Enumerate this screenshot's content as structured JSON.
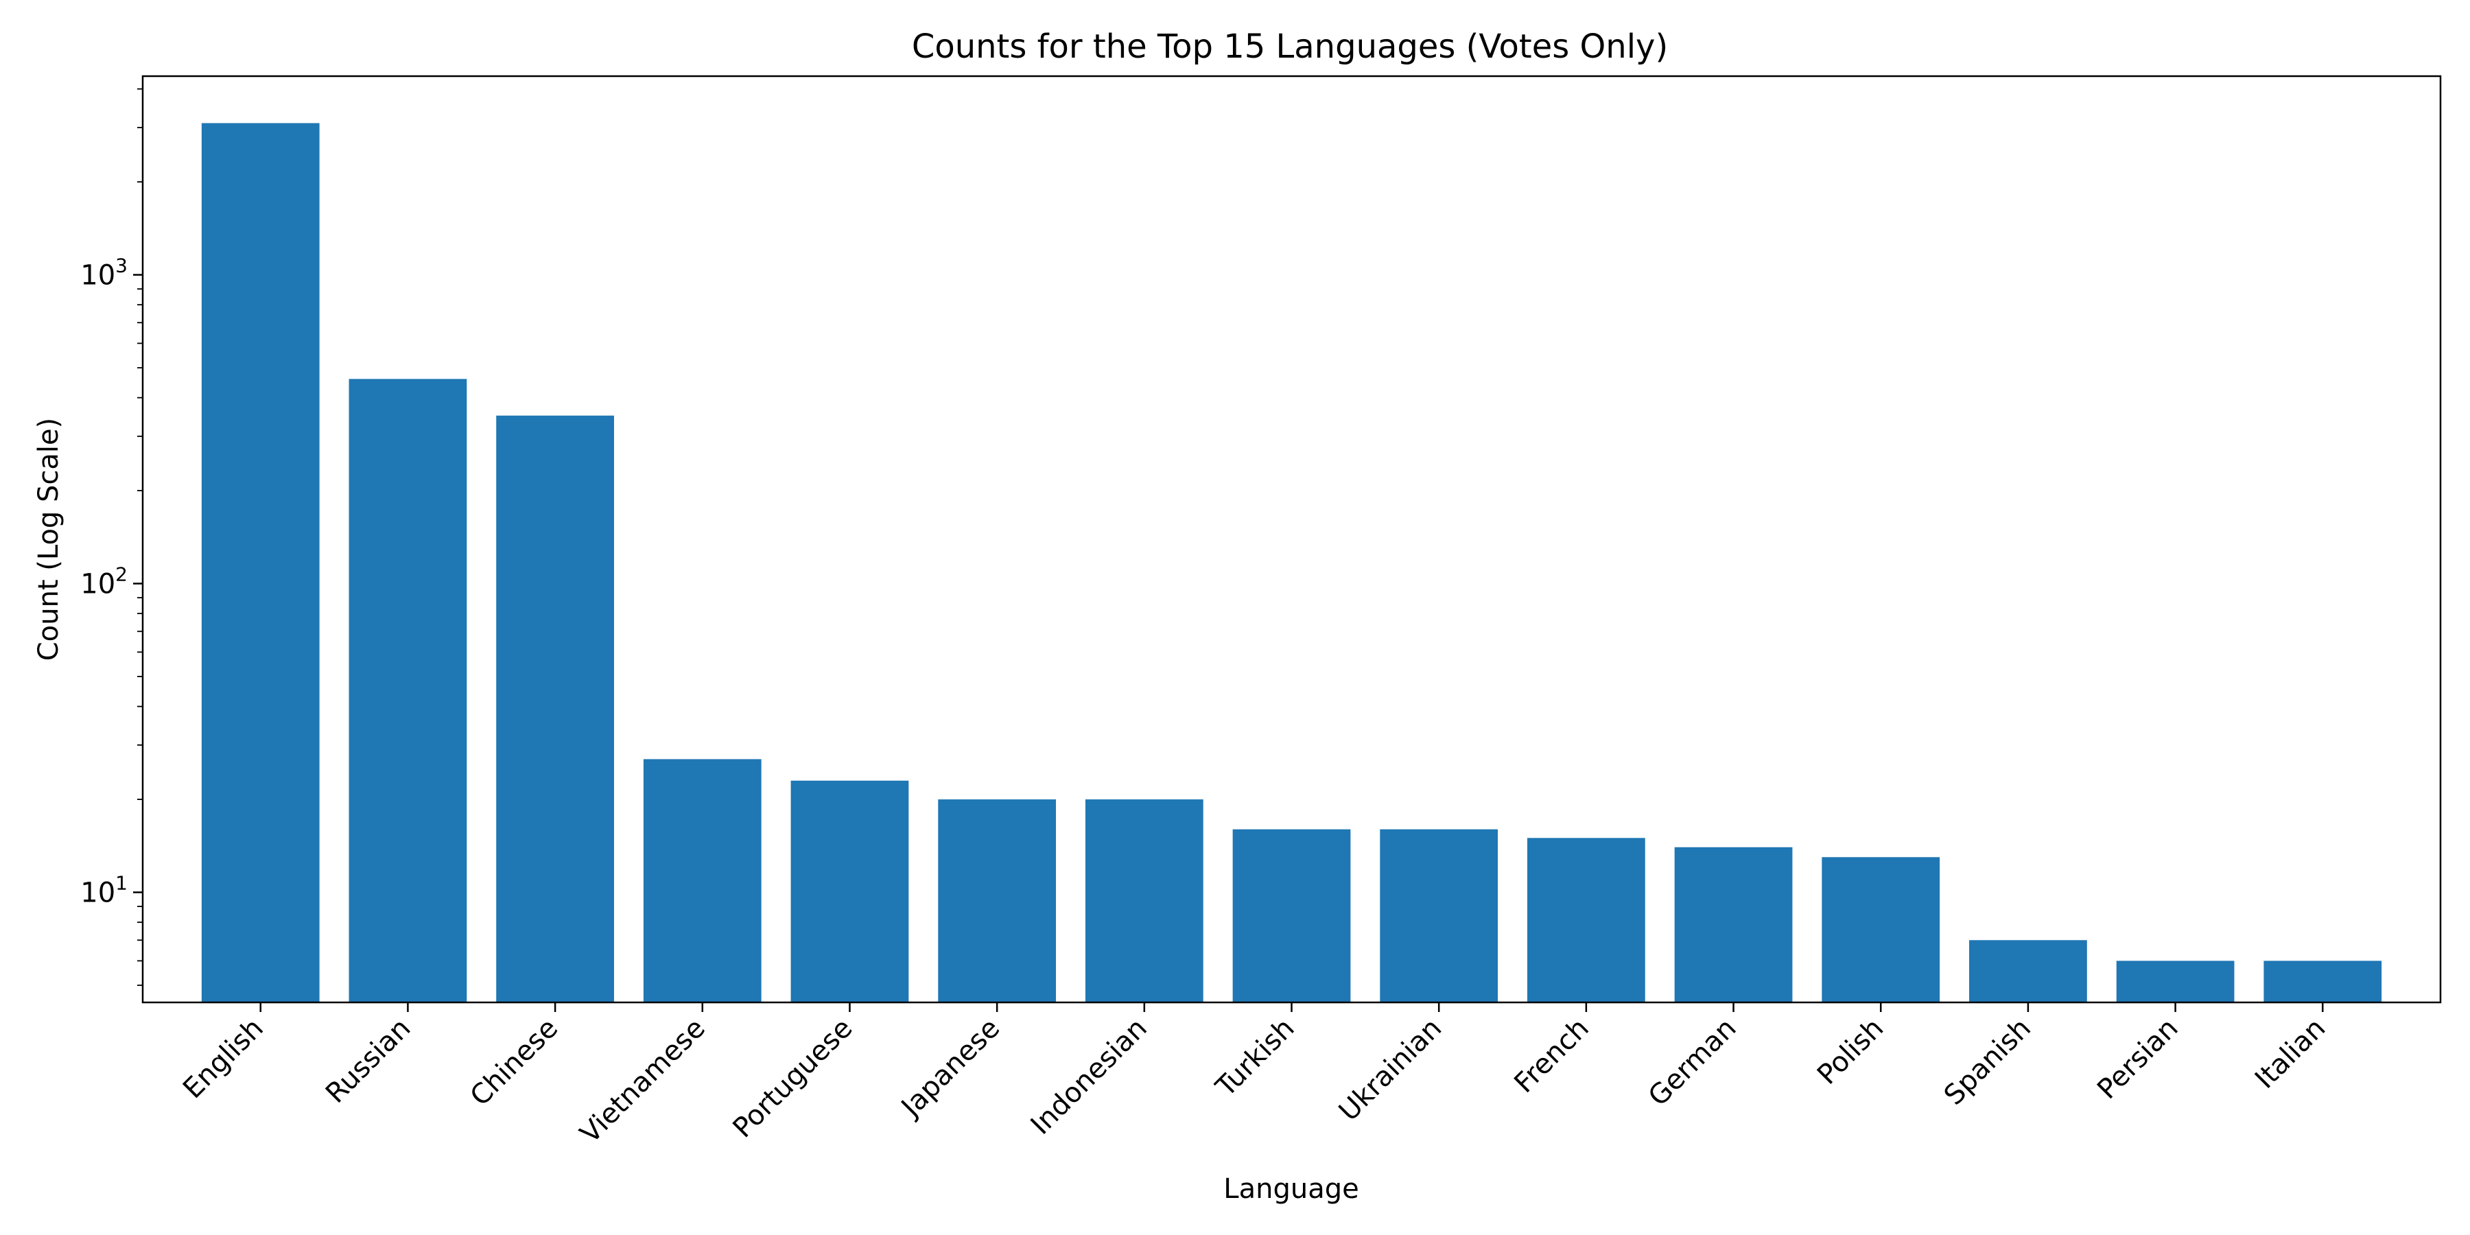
{
  "chart_data": {
    "type": "bar",
    "title": "Counts for the Top 15 Languages (Votes Only)",
    "xlabel": "Language",
    "ylabel": "Count (Log Scale)",
    "yscale": "log",
    "ylim": [
      4.4,
      4400
    ],
    "grid": false,
    "bar_color": "#1f77b4",
    "yticks": [
      {
        "value": 10,
        "base": "10",
        "exp": "1"
      },
      {
        "value": 100,
        "base": "10",
        "exp": "2"
      },
      {
        "value": 1000,
        "base": "10",
        "exp": "3"
      }
    ],
    "categories": [
      "English",
      "Russian",
      "Chinese",
      "Vietnamese",
      "Portuguese",
      "Japanese",
      "Indonesian",
      "Turkish",
      "Ukrainian",
      "French",
      "German",
      "Polish",
      "Spanish",
      "Persian",
      "Italian"
    ],
    "values": [
      3100,
      460,
      350,
      27,
      23,
      20,
      20,
      16,
      16,
      15,
      14,
      13,
      7,
      6,
      6
    ]
  }
}
